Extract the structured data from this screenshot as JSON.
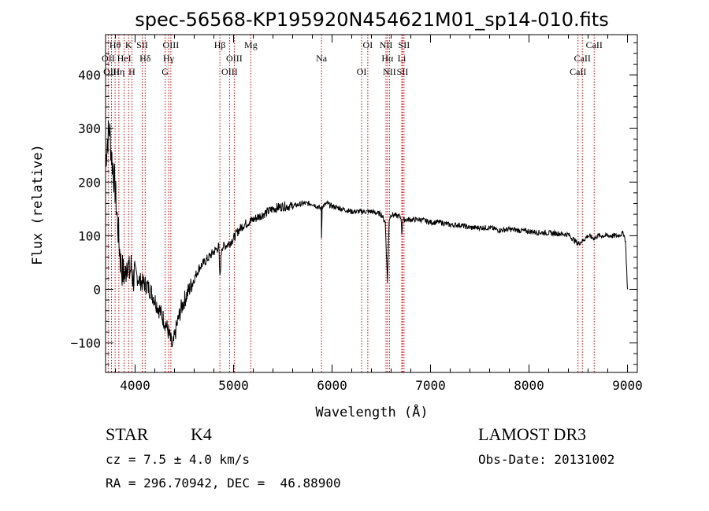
{
  "chart_data": {
    "type": "line",
    "title": "spec-56568-KP195920N454621M01_sp14-010.fits",
    "xlabel": "Wavelength (Å)",
    "ylabel": "Flux (relative)",
    "xlim": [
      3700,
      9100
    ],
    "ylim": [
      -155,
      475
    ],
    "x_ticks": [
      4000,
      5000,
      6000,
      7000,
      8000,
      9000
    ],
    "x_tick_labels": [
      "4000",
      "5000",
      "6000",
      "7000",
      "8000",
      "9000"
    ],
    "y_ticks": [
      -100,
      0,
      100,
      200,
      300,
      400
    ],
    "y_tick_labels": [
      "−100",
      "0",
      "100",
      "200",
      "300",
      "400"
    ],
    "series": [
      {
        "name": "Flux",
        "x": [
          3700,
          3720,
          3740,
          3760,
          3780,
          3800,
          3820,
          3840,
          3860,
          3880,
          3900,
          3920,
          3940,
          3960,
          3980,
          4000,
          4050,
          4100,
          4150,
          4200,
          4250,
          4300,
          4340,
          4380,
          4420,
          4460,
          4500,
          4550,
          4600,
          4650,
          4700,
          4750,
          4800,
          4850,
          4861,
          4880,
          4900,
          4950,
          5000,
          5050,
          5100,
          5150,
          5200,
          5300,
          5400,
          5500,
          5600,
          5700,
          5800,
          5890,
          5893,
          5900,
          5950,
          6000,
          6100,
          6200,
          6300,
          6400,
          6500,
          6540,
          6563,
          6580,
          6600,
          6700,
          6708,
          6720,
          6800,
          6900,
          7000,
          7100,
          7200,
          7300,
          7400,
          7500,
          7600,
          7700,
          7800,
          7900,
          8000,
          8100,
          8200,
          8300,
          8400,
          8498,
          8542,
          8600,
          8662,
          8700,
          8800,
          8900,
          8960,
          8980,
          9000
        ],
        "values": [
          240,
          280,
          300,
          250,
          220,
          180,
          130,
          80,
          40,
          30,
          25,
          60,
          30,
          40,
          20,
          30,
          15,
          10,
          0,
          -20,
          -40,
          -60,
          -80,
          -110,
          -70,
          -40,
          -20,
          0,
          20,
          40,
          50,
          60,
          70,
          80,
          20,
          80,
          80,
          85,
          95,
          110,
          120,
          125,
          130,
          140,
          150,
          155,
          155,
          160,
          160,
          150,
          95,
          155,
          160,
          155,
          150,
          145,
          145,
          145,
          140,
          125,
          15,
          130,
          140,
          135,
          105,
          130,
          130,
          130,
          125,
          125,
          120,
          120,
          115,
          115,
          115,
          110,
          112,
          110,
          108,
          106,
          105,
          104,
          102,
          85,
          90,
          100,
          95,
          100,
          100,
          100,
          105,
          90,
          0
        ]
      }
    ],
    "lines": [
      {
        "label": "Hθ",
        "x": 3797
      },
      {
        "label": "OII",
        "x": 3727
      },
      {
        "label": "OIII",
        "x": 3760
      },
      {
        "label": "K",
        "x": 3934
      },
      {
        "label": "HeI",
        "x": 3889
      },
      {
        "label": "Hη",
        "x": 3835
      },
      {
        "label": "SII",
        "x": 4072
      },
      {
        "label": "Hδ",
        "x": 4102
      },
      {
        "label": "H",
        "x": 3968
      },
      {
        "label": "OIII",
        "x": 4363
      },
      {
        "label": "Hγ",
        "x": 4340
      },
      {
        "label": "G",
        "x": 4305
      },
      {
        "label": "Hβ",
        "x": 4861
      },
      {
        "label": "OIII",
        "x": 5007
      },
      {
        "label": "OIII",
        "x": 4959
      },
      {
        "label": "Mg",
        "x": 5175
      },
      {
        "label": "Na",
        "x": 5893
      },
      {
        "label": "OI",
        "x": 6300
      },
      {
        "label": "OI",
        "x": 6363
      },
      {
        "label": "Hα",
        "x": 6563
      },
      {
        "label": "SII",
        "x": 6716
      },
      {
        "label": "NII",
        "x": 6548
      },
      {
        "label": "Li",
        "x": 6708
      },
      {
        "label": "NII",
        "x": 6583
      },
      {
        "label": "SII",
        "x": 6731
      },
      {
        "label": "CaII",
        "x": 8542
      },
      {
        "label": "CaII",
        "x": 8498
      },
      {
        "label": "CaII",
        "x": 8662
      }
    ]
  },
  "info": {
    "class_label": "STAR",
    "subclass": "K4",
    "survey": "LAMOST DR3",
    "cz": "cz = 7.5 ± 4.0 km/s",
    "obs_date": "Obs-Date: 20131002",
    "coords": "RA = 296.70942, DEC =  46.88900"
  },
  "colors": {
    "line_color": "#000000",
    "marker_color": "#cc0000",
    "background": "#ffffff"
  }
}
